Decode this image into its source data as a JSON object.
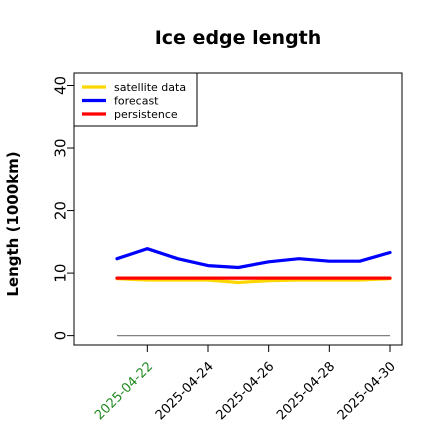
{
  "chart_data": {
    "type": "line",
    "title": "Ice edge length",
    "xlabel": "",
    "ylabel": "Length (1000km)",
    "ylim": [
      -1.5,
      42
    ],
    "yticks": [
      0,
      10,
      20,
      30,
      40
    ],
    "x": [
      "2025-04-21",
      "2025-04-22",
      "2025-04-23",
      "2025-04-24",
      "2025-04-25",
      "2025-04-26",
      "2025-04-27",
      "2025-04-28",
      "2025-04-29",
      "2025-04-30"
    ],
    "xticks": [
      {
        "label": "2025-04-22",
        "color": "#228b22"
      },
      {
        "label": "2025-04-24",
        "color": "#000000"
      },
      {
        "label": "2025-04-26",
        "color": "#000000"
      },
      {
        "label": "2025-04-28",
        "color": "#000000"
      },
      {
        "label": "2025-04-30",
        "color": "#000000"
      }
    ],
    "series": [
      {
        "name": "satellite data",
        "color": "#ffd700",
        "values": [
          9.1,
          8.9,
          8.9,
          8.9,
          8.5,
          8.8,
          8.9,
          8.9,
          8.9,
          9.1
        ]
      },
      {
        "name": "forecast",
        "color": "#0000ff",
        "values": [
          12.3,
          13.9,
          12.3,
          11.2,
          10.9,
          11.8,
          12.3,
          11.9,
          11.9,
          13.3
        ]
      },
      {
        "name": "persistence",
        "color": "#ff0000",
        "values": [
          9.2,
          9.2,
          9.2,
          9.2,
          9.2,
          9.2,
          9.2,
          9.2,
          9.2,
          9.2
        ]
      }
    ],
    "reference_line": {
      "value": 0,
      "color": "#808080"
    },
    "legend_position": "top-left",
    "grid": false
  }
}
